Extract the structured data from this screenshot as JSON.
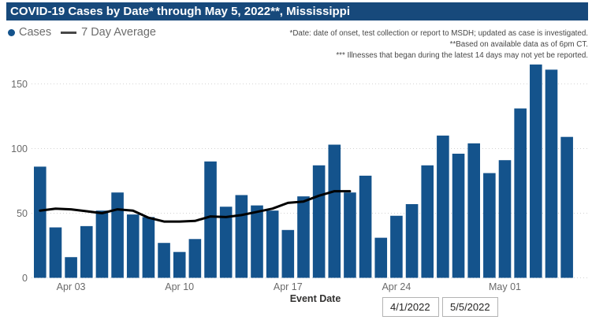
{
  "header": {
    "title": "COVID-19 Cases by Date* through May 5, 2022**, Mississippi",
    "title_bg_color": "#17497B",
    "title_text_color": "#ffffff"
  },
  "legend": {
    "cases_label": "Cases",
    "average_label": "7 Day Average",
    "cases_symbol": "dot-icon",
    "average_symbol": "line-segment-icon"
  },
  "notes": {
    "line1": "*Date: date of onset, test collection or report to MSDH; updated as case is investigated.",
    "line2": "**Based on available data as of 6pm CT.",
    "line3": "*** Illnesses that began during the latest 14 days may not yet be reported."
  },
  "slicer": {
    "start_date": "4/1/2022",
    "end_date": "5/5/2022"
  },
  "chart_data": {
    "type": "bar",
    "title": "COVID-19 Cases by Date* through May 5, 2022**, Mississippi",
    "xlabel": "Event Date",
    "ylabel": "",
    "ylim": [
      0,
      170
    ],
    "y_ticks": [
      0,
      50,
      100,
      150
    ],
    "grid": "horizontal-dotted",
    "legend_position": "top-left",
    "categories": [
      "Apr 1",
      "Apr 2",
      "Apr 3",
      "Apr 4",
      "Apr 5",
      "Apr 6",
      "Apr 7",
      "Apr 8",
      "Apr 9",
      "Apr 10",
      "Apr 11",
      "Apr 12",
      "Apr 13",
      "Apr 14",
      "Apr 15",
      "Apr 16",
      "Apr 17",
      "Apr 18",
      "Apr 19",
      "Apr 20",
      "Apr 21",
      "Apr 22",
      "Apr 23",
      "Apr 24",
      "Apr 25",
      "Apr 26",
      "Apr 27",
      "Apr 28",
      "Apr 29",
      "Apr 30",
      "May 1",
      "May 2",
      "May 3",
      "May 4",
      "May 5"
    ],
    "x_tick_labels": [
      "Apr 03",
      "Apr 10",
      "Apr 17",
      "Apr 24",
      "May 01"
    ],
    "x_tick_day_indices": [
      2,
      9,
      16,
      23,
      30
    ],
    "series": [
      {
        "name": "Cases",
        "render": "bar",
        "color": "#14538C",
        "values": [
          86,
          39,
          16,
          40,
          52,
          66,
          49,
          47,
          27,
          20,
          30,
          90,
          55,
          64,
          56,
          52,
          37,
          63,
          87,
          103,
          66,
          79,
          31,
          48,
          57,
          87,
          110,
          96,
          104,
          81,
          91,
          131,
          165,
          161,
          109
        ]
      },
      {
        "name": "7 Day Average",
        "render": "line",
        "color": "#000000",
        "values": [
          52,
          53.5,
          53,
          51.5,
          50,
          53,
          52,
          46.5,
          43.5,
          43.5,
          44,
          47.5,
          47,
          48.5,
          51,
          53.5,
          58,
          59,
          63.5,
          67,
          67,
          null,
          null,
          null,
          null,
          null,
          null,
          null,
          null,
          null,
          null,
          null,
          null,
          null,
          null
        ]
      }
    ],
    "axis_text_color": "#6a6a6a",
    "gridline_color": "#d2d2d2"
  }
}
